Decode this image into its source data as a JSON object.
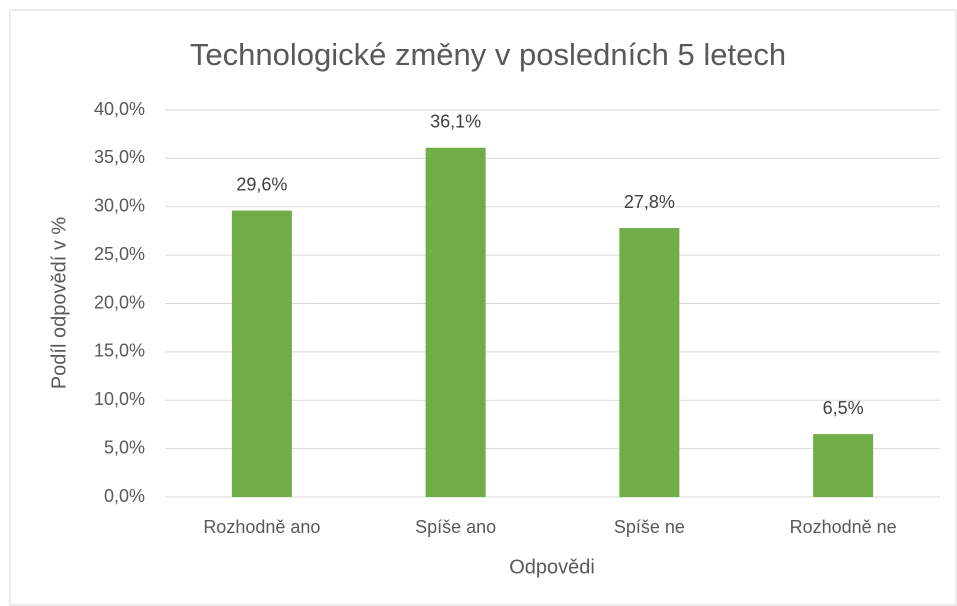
{
  "chart_data": {
    "type": "bar",
    "title": "Technologické změny v posledních 5 letech",
    "categories": [
      "Rozhodně ano",
      "Spíše ano",
      "Spíše ne",
      "Rozhodně ne"
    ],
    "values": [
      29.6,
      36.1,
      27.8,
      6.5
    ],
    "value_labels": [
      "29,6%",
      "36,1%",
      "27,8%",
      "6,5%"
    ],
    "color": "#70ad47",
    "x_label": "Odpovědi",
    "y_label": "Podíl odpovědí v %",
    "ylim": [
      0,
      40
    ],
    "yticks": [
      {
        "value": 0,
        "label": "0,0%"
      },
      {
        "value": 5,
        "label": "5,0%"
      },
      {
        "value": 10,
        "label": "10,0%"
      },
      {
        "value": 15,
        "label": "15,0%"
      },
      {
        "value": 20,
        "label": "20,0%"
      },
      {
        "value": 25,
        "label": "25,0%"
      },
      {
        "value": 30,
        "label": "30,0%"
      },
      {
        "value": 35,
        "label": "35,0%"
      },
      {
        "value": 40,
        "label": "40,0%"
      }
    ],
    "grid": true
  }
}
